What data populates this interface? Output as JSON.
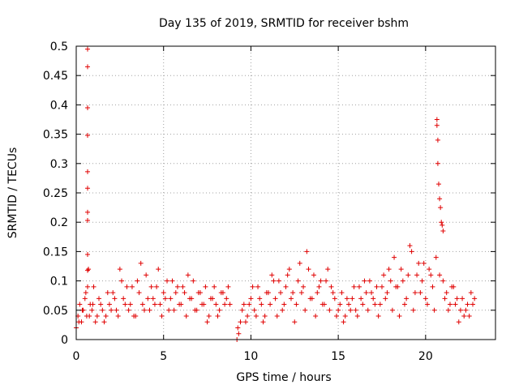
{
  "chart_data": {
    "type": "scatter",
    "title": "Day 135 of 2019, SRMTID for receiver bshm",
    "xlabel": "GPS time / hours",
    "ylabel": "SRMTID / TECUs",
    "xlim": [
      0,
      24
    ],
    "ylim": [
      0,
      0.5
    ],
    "x_ticks": [
      0,
      5,
      10,
      15,
      20
    ],
    "x_tick_labels": [
      "0",
      "5",
      "10",
      "15",
      "20"
    ],
    "y_ticks": [
      0,
      0.05,
      0.1,
      0.15,
      0.2,
      0.25,
      0.3,
      0.35,
      0.4,
      0.45,
      0.5
    ],
    "y_tick_labels": [
      "0",
      "0.05",
      "0.1",
      "0.15",
      "0.2",
      "0.25",
      "0.3",
      "0.35",
      "0.4",
      "0.45",
      "0.5"
    ],
    "grid": true,
    "marker": "+",
    "color": "#e00000",
    "series": [
      {
        "name": "SRMTID",
        "x": [
          0.0,
          0.1,
          0.2,
          0.3,
          0.4,
          0.5,
          0.6,
          0.7,
          0.8,
          0.9,
          1.0,
          1.2,
          1.4,
          1.6,
          1.8,
          2.0,
          2.2,
          2.4,
          2.6,
          2.8,
          3.0,
          3.2,
          3.4,
          3.6,
          3.8,
          4.0,
          4.2,
          4.4,
          4.6,
          4.8,
          5.0,
          5.2,
          5.4,
          5.6,
          5.8,
          6.0,
          6.2,
          6.4,
          6.6,
          6.8,
          7.0,
          7.2,
          7.4,
          7.6,
          7.8,
          8.0,
          8.2,
          8.4,
          8.6,
          8.8,
          9.2,
          9.3,
          9.4,
          9.6,
          9.8,
          10.0,
          10.2,
          10.4,
          10.6,
          10.8,
          11.0,
          11.2,
          11.4,
          11.6,
          11.8,
          12.0,
          12.2,
          12.4,
          12.6,
          12.8,
          13.0,
          13.2,
          13.4,
          13.6,
          13.8,
          14.0,
          14.2,
          14.4,
          14.6,
          14.8,
          15.0,
          15.2,
          15.4,
          15.6,
          15.8,
          16.0,
          16.2,
          16.4,
          16.6,
          16.8,
          17.0,
          17.2,
          17.4,
          17.6,
          17.8,
          18.0,
          18.2,
          18.4,
          18.6,
          18.8,
          19.0,
          19.2,
          19.4,
          19.6,
          19.8,
          20.0,
          20.2,
          20.4,
          20.6,
          20.8,
          21.0,
          21.2,
          21.4,
          21.6,
          21.8,
          22.0,
          22.2,
          22.4,
          22.6,
          22.8,
          0.65,
          0.65,
          0.65,
          0.65,
          0.65,
          0.65,
          0.65,
          0.65,
          0.65,
          0.65,
          0.65,
          20.65,
          20.65,
          20.7,
          20.7,
          20.75,
          20.8,
          20.85,
          20.9,
          20.95,
          21.0,
          0.15,
          0.35,
          0.55,
          0.75,
          0.95,
          1.1,
          1.3,
          1.5,
          1.7,
          1.9,
          2.1,
          2.3,
          2.5,
          2.7,
          2.9,
          3.1,
          3.3,
          3.5,
          3.7,
          3.9,
          4.1,
          4.3,
          4.5,
          4.7,
          4.9,
          5.1,
          5.3,
          5.5,
          5.7,
          5.9,
          6.1,
          6.3,
          6.5,
          6.7,
          6.9,
          7.1,
          7.3,
          7.5,
          7.7,
          7.9,
          8.1,
          8.3,
          8.5,
          8.7,
          9.25,
          9.5,
          9.7,
          9.9,
          10.1,
          10.3,
          10.5,
          10.7,
          10.9,
          11.1,
          11.3,
          11.5,
          11.7,
          11.9,
          12.1,
          12.3,
          12.5,
          12.7,
          12.9,
          13.1,
          13.3,
          13.5,
          13.7,
          13.9,
          14.1,
          14.3,
          14.5,
          14.7,
          14.9,
          15.1,
          15.3,
          15.5,
          15.7,
          15.9,
          16.1,
          16.3,
          16.5,
          16.7,
          16.9,
          17.1,
          17.3,
          17.5,
          17.7,
          17.9,
          18.1,
          18.3,
          18.5,
          18.7,
          18.9,
          19.1,
          19.3,
          19.5,
          19.7,
          19.9,
          20.1,
          20.3,
          20.5,
          21.1,
          21.3,
          21.5,
          21.7,
          21.9,
          22.1,
          22.3,
          22.5,
          22.7
        ],
        "y": [
          0.02,
          0.04,
          0.06,
          0.03,
          0.05,
          0.07,
          0.04,
          0.12,
          0.06,
          0.05,
          0.09,
          0.04,
          0.06,
          0.03,
          0.08,
          0.05,
          0.07,
          0.04,
          0.1,
          0.06,
          0.05,
          0.09,
          0.04,
          0.08,
          0.06,
          0.11,
          0.05,
          0.07,
          0.09,
          0.06,
          0.08,
          0.1,
          0.07,
          0.05,
          0.09,
          0.06,
          0.08,
          0.11,
          0.07,
          0.05,
          0.08,
          0.06,
          0.09,
          0.04,
          0.07,
          0.06,
          0.05,
          0.08,
          0.07,
          0.06,
          0.0,
          0.01,
          0.03,
          0.06,
          0.04,
          0.07,
          0.05,
          0.09,
          0.06,
          0.04,
          0.08,
          0.11,
          0.07,
          0.1,
          0.05,
          0.09,
          0.12,
          0.08,
          0.06,
          0.13,
          0.09,
          0.15,
          0.07,
          0.11,
          0.08,
          0.1,
          0.06,
          0.12,
          0.09,
          0.07,
          0.05,
          0.08,
          0.04,
          0.06,
          0.07,
          0.05,
          0.09,
          0.06,
          0.08,
          0.1,
          0.07,
          0.09,
          0.06,
          0.11,
          0.08,
          0.1,
          0.14,
          0.09,
          0.12,
          0.06,
          0.11,
          0.15,
          0.08,
          0.13,
          0.1,
          0.07,
          0.12,
          0.09,
          0.14,
          0.11,
          0.1,
          0.08,
          0.06,
          0.09,
          0.07,
          0.05,
          0.04,
          0.06,
          0.08,
          0.07,
          0.495,
          0.465,
          0.395,
          0.348,
          0.286,
          0.258,
          0.217,
          0.203,
          0.145,
          0.118,
          0.09,
          0.375,
          0.365,
          0.34,
          0.3,
          0.265,
          0.24,
          0.225,
          0.2,
          0.195,
          0.185,
          0.03,
          0.05,
          0.08,
          0.04,
          0.06,
          0.03,
          0.07,
          0.05,
          0.04,
          0.06,
          0.08,
          0.05,
          0.12,
          0.07,
          0.09,
          0.06,
          0.04,
          0.1,
          0.13,
          0.05,
          0.07,
          0.09,
          0.06,
          0.12,
          0.04,
          0.07,
          0.05,
          0.1,
          0.08,
          0.06,
          0.09,
          0.04,
          0.07,
          0.1,
          0.05,
          0.08,
          0.06,
          0.03,
          0.07,
          0.09,
          0.04,
          0.08,
          0.06,
          0.09,
          0.02,
          0.05,
          0.03,
          0.06,
          0.09,
          0.04,
          0.07,
          0.03,
          0.08,
          0.06,
          0.1,
          0.04,
          0.08,
          0.06,
          0.11,
          0.07,
          0.03,
          0.1,
          0.08,
          0.05,
          0.12,
          0.07,
          0.04,
          0.09,
          0.06,
          0.1,
          0.05,
          0.08,
          0.04,
          0.06,
          0.03,
          0.07,
          0.05,
          0.09,
          0.04,
          0.07,
          0.1,
          0.05,
          0.08,
          0.06,
          0.04,
          0.09,
          0.07,
          0.12,
          0.05,
          0.09,
          0.04,
          0.1,
          0.07,
          0.16,
          0.05,
          0.11,
          0.08,
          0.13,
          0.06,
          0.11,
          0.05,
          0.07,
          0.05,
          0.09,
          0.06,
          0.03,
          0.07,
          0.05,
          0.04,
          0.06
        ]
      }
    ]
  }
}
